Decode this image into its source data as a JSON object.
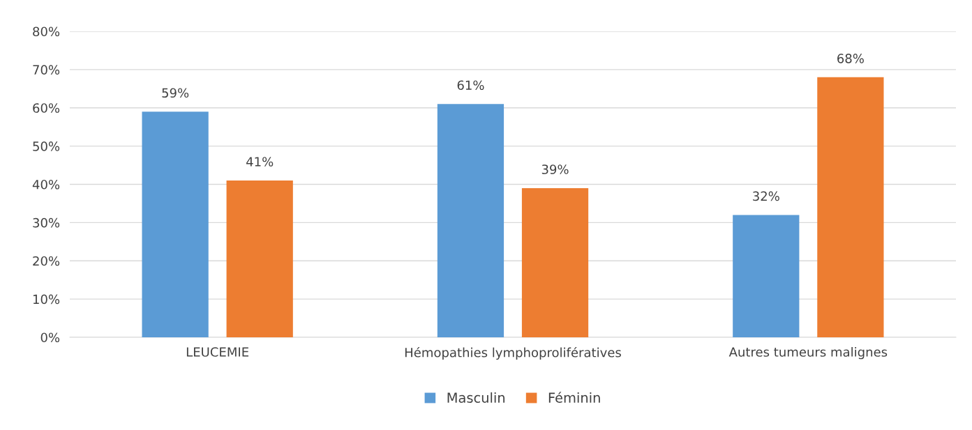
{
  "chart_data": {
    "type": "bar",
    "categories": [
      "LEUCEMIE",
      "Hémopathies lymphoprolifératives",
      "Autres tumeurs malignes"
    ],
    "series": [
      {
        "name": "Masculin",
        "color": "#5b9bd5",
        "values": [
          59,
          61,
          32
        ],
        "value_labels": [
          "59%",
          "61%",
          "32%"
        ]
      },
      {
        "name": "Féminin",
        "color": "#ed7d31",
        "values": [
          41,
          39,
          68
        ],
        "value_labels": [
          "41%",
          "39%",
          "68%"
        ]
      }
    ],
    "ylim": [
      0,
      80
    ],
    "yticks": [
      {
        "value": 0,
        "label": "0%"
      },
      {
        "value": 10,
        "label": "10%"
      },
      {
        "value": 20,
        "label": "20%"
      },
      {
        "value": 30,
        "label": "30%"
      },
      {
        "value": 40,
        "label": "40%"
      },
      {
        "value": 50,
        "label": "50%"
      },
      {
        "value": 60,
        "label": "60%"
      },
      {
        "value": 70,
        "label": "70%"
      },
      {
        "value": 80,
        "label": "80%"
      }
    ],
    "grid": "y",
    "legend": "bottom"
  }
}
